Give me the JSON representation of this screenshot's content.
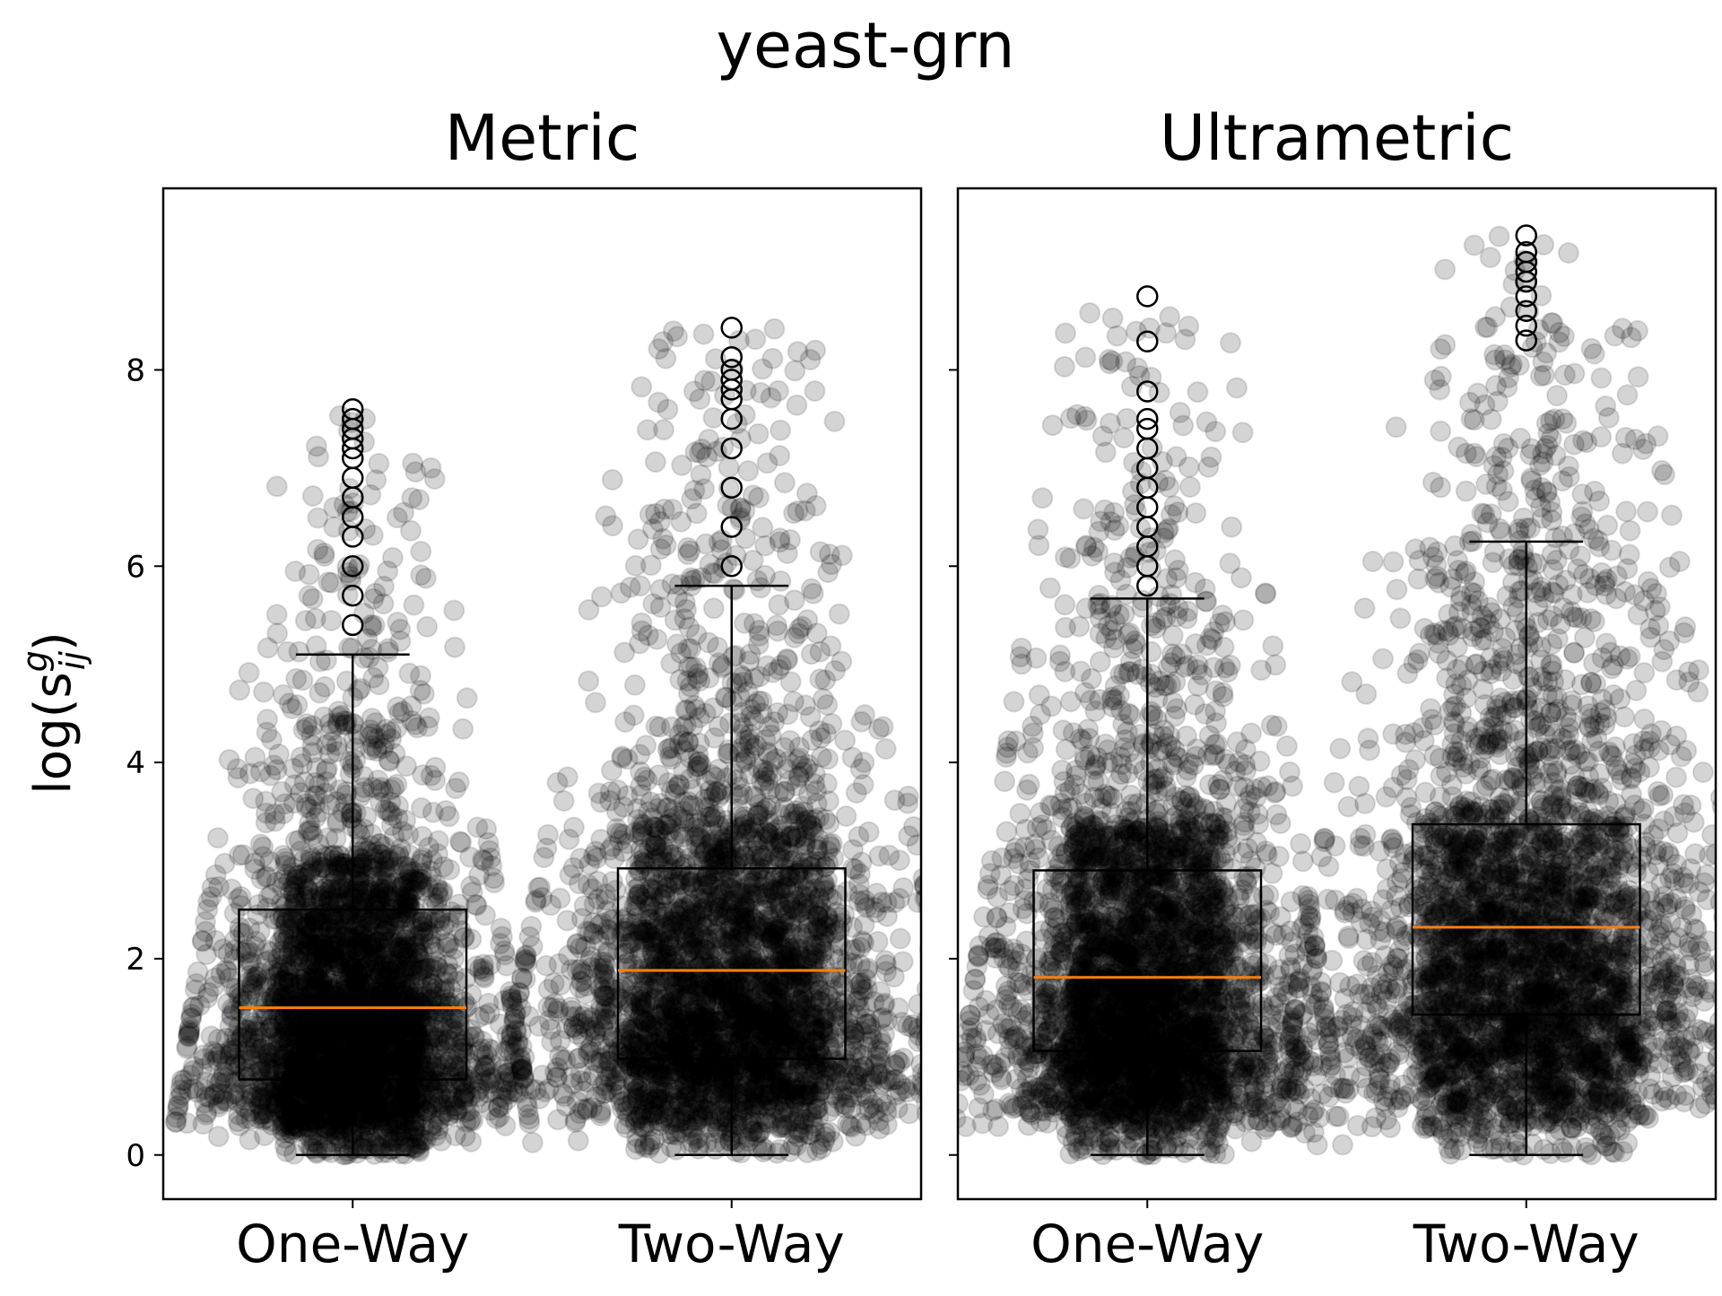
{
  "chart_data": {
    "type": "box",
    "title": "yeast-grn",
    "ylabel": "log(s",
    "ylabel_sup": "g",
    "ylabel_sub": "ij",
    "ylabel_close": ")",
    "ylim": [
      -0.45,
      9.85
    ],
    "yticks": [
      0,
      2,
      4,
      6,
      8
    ],
    "ytick_labels": [
      "0",
      "2",
      "4",
      "6",
      "8"
    ],
    "colors": {
      "box": "#000000",
      "median": "#ff7f0e",
      "points": "#000000"
    },
    "panels": [
      {
        "title": "Metric",
        "categories": [
          "One-Way",
          "Two-Way"
        ],
        "boxes": [
          {
            "category": "One-Way",
            "whisker_low": 0.0,
            "q1": 0.77,
            "median": 1.5,
            "q3": 2.5,
            "whisker_high": 5.1,
            "spread": 0.22,
            "top": 7.6,
            "outliers": [
              5.4,
              5.7,
              6.0,
              6.3,
              6.5,
              6.7,
              6.9,
              7.1,
              7.2,
              7.3,
              7.4,
              7.5,
              7.6
            ]
          },
          {
            "category": "Two-Way",
            "whisker_low": 0.0,
            "q1": 0.98,
            "median": 1.88,
            "q3": 2.92,
            "whisker_high": 5.8,
            "spread": 0.3,
            "top": 8.43,
            "outliers": [
              6.0,
              6.4,
              6.8,
              7.2,
              7.5,
              7.7,
              7.8,
              7.9,
              8.0,
              8.13,
              8.43
            ]
          }
        ]
      },
      {
        "title": "Ultrametric",
        "categories": [
          "One-Way",
          "Two-Way"
        ],
        "boxes": [
          {
            "category": "One-Way",
            "whisker_low": 0.0,
            "q1": 1.06,
            "median": 1.81,
            "q3": 2.9,
            "whisker_high": 5.67,
            "spread": 0.24,
            "top": 8.75,
            "outliers": [
              5.8,
              6.0,
              6.2,
              6.4,
              6.6,
              6.8,
              7.0,
              7.2,
              7.4,
              7.5,
              7.78,
              8.29,
              8.75
            ]
          },
          {
            "category": "Two-Way",
            "whisker_low": 0.0,
            "q1": 1.43,
            "median": 2.32,
            "q3": 3.37,
            "whisker_high": 6.25,
            "spread": 0.32,
            "top": 9.37,
            "outliers": [
              8.3,
              8.45,
              8.6,
              8.75,
              8.9,
              9.0,
              9.1,
              9.2,
              9.37
            ]
          }
        ]
      }
    ]
  }
}
